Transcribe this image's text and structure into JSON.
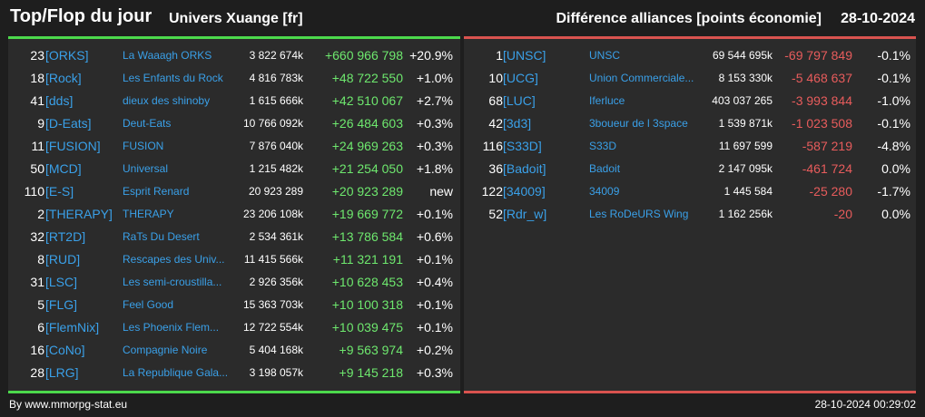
{
  "header": {
    "title": "Top/Flop du jour",
    "subtitle": "Univers Xuange [fr]",
    "section": "Différence alliances [points économie]",
    "date": "28-10-2024"
  },
  "colors": {
    "positive": "#6ee86e",
    "negative": "#e85c5c",
    "link": "#3aa0e8",
    "top_accent": "#4cd94c",
    "flop_accent": "#d9534f"
  },
  "top": [
    {
      "rank": "23",
      "tag": "[ORKS]",
      "name": "La Waaagh ORKS",
      "points": "3 822 674k",
      "diff": "+660 966 798",
      "pct": "+20.9%"
    },
    {
      "rank": "18",
      "tag": "[Rock]",
      "name": "Les Enfants du Rock",
      "points": "4 816 783k",
      "diff": "+48 722 550",
      "pct": "+1.0%"
    },
    {
      "rank": "41",
      "tag": "[dds]",
      "name": "dieux des shinoby",
      "points": "1 615 666k",
      "diff": "+42 510 067",
      "pct": "+2.7%"
    },
    {
      "rank": "9",
      "tag": "[D-Eats]",
      "name": "Deut-Eats",
      "points": "10 766 092k",
      "diff": "+26 484 603",
      "pct": "+0.3%"
    },
    {
      "rank": "11",
      "tag": "[FUSION]",
      "name": "FUSION",
      "points": "7 876 040k",
      "diff": "+24 969 263",
      "pct": "+0.3%"
    },
    {
      "rank": "50",
      "tag": "[MCD]",
      "name": "Universal",
      "points": "1 215 482k",
      "diff": "+21 254 050",
      "pct": "+1.8%"
    },
    {
      "rank": "110",
      "tag": "[E-S]",
      "name": "Esprit Renard",
      "points": "20 923 289",
      "diff": "+20 923 289",
      "pct": "new"
    },
    {
      "rank": "2",
      "tag": "[THERAPY]",
      "name": "THERAPY",
      "points": "23 206 108k",
      "diff": "+19 669 772",
      "pct": "+0.1%"
    },
    {
      "rank": "32",
      "tag": "[RT2D]",
      "name": "RaTs Du Desert",
      "points": "2 534 361k",
      "diff": "+13 786 584",
      "pct": "+0.6%"
    },
    {
      "rank": "8",
      "tag": "[RUD]",
      "name": "Rescapes des Univ...",
      "points": "11 415 566k",
      "diff": "+11 321 191",
      "pct": "+0.1%"
    },
    {
      "rank": "31",
      "tag": "[LSC]",
      "name": "Les semi-croustilla...",
      "points": "2 926 356k",
      "diff": "+10 628 453",
      "pct": "+0.4%"
    },
    {
      "rank": "5",
      "tag": "[FLG]",
      "name": "Feel Good",
      "points": "15 363 703k",
      "diff": "+10 100 318",
      "pct": "+0.1%"
    },
    {
      "rank": "6",
      "tag": "[FlemNix]",
      "name": "Les Phoenix Flem...",
      "points": "12 722 554k",
      "diff": "+10 039 475",
      "pct": "+0.1%"
    },
    {
      "rank": "16",
      "tag": "[CoNo]",
      "name": "Compagnie Noire",
      "points": "5 404 168k",
      "diff": "+9 563 974",
      "pct": "+0.2%"
    },
    {
      "rank": "28",
      "tag": "[LRG]",
      "name": "La Republique Gala...",
      "points": "3 198 057k",
      "diff": "+9 145 218",
      "pct": "+0.3%"
    }
  ],
  "flop": [
    {
      "rank": "1",
      "tag": "[UNSC]",
      "name": "UNSC",
      "points": "69 544 695k",
      "diff": "-69 797 849",
      "pct": "-0.1%"
    },
    {
      "rank": "10",
      "tag": "[UCG]",
      "name": "Union Commerciale...",
      "points": "8 153 330k",
      "diff": "-5 468 637",
      "pct": "-0.1%"
    },
    {
      "rank": "68",
      "tag": "[LUC]",
      "name": "Iferluce",
      "points": "403 037 265",
      "diff": "-3 993 844",
      "pct": "-1.0%"
    },
    {
      "rank": "42",
      "tag": "[3d3]",
      "name": "3boueur de l 3space",
      "points": "1 539 871k",
      "diff": "-1 023 508",
      "pct": "-0.1%"
    },
    {
      "rank": "116",
      "tag": "[S33D]",
      "name": "S33D",
      "points": "11 697 599",
      "diff": "-587 219",
      "pct": "-4.8%"
    },
    {
      "rank": "36",
      "tag": "[Badoit]",
      "name": "Badoit",
      "points": "2 147 095k",
      "diff": "-461 724",
      "pct": "0.0%"
    },
    {
      "rank": "122",
      "tag": "[34009]",
      "name": "34009",
      "points": "1 445 584",
      "diff": "-25 280",
      "pct": "-1.7%"
    },
    {
      "rank": "52",
      "tag": "[Rdr_w]",
      "name": "Les RoDeURS Wing",
      "points": "1 162 256k",
      "diff": "-20",
      "pct": "0.0%"
    }
  ],
  "footer": {
    "source": "By www.mmorpg-stat.eu",
    "timestamp": "28-10-2024 00:29:02"
  }
}
